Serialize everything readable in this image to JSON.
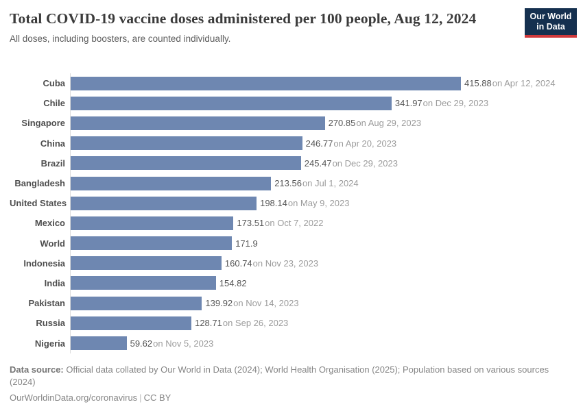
{
  "header": {
    "title": "Total COVID-19 vaccine doses administered per 100 people, Aug 12, 2024",
    "subtitle": "All doses, including boosters, are counted individually.",
    "logo": {
      "line1": "Our World",
      "line2": "in Data"
    }
  },
  "chart_data": {
    "type": "bar",
    "orientation": "horizontal",
    "title": "Total COVID-19 vaccine doses administered per 100 people, Aug 12, 2024",
    "xlabel": "",
    "ylabel": "",
    "xlim": [
      0,
      415.88
    ],
    "grid": false,
    "legend": "none",
    "bar_color": "#6e87b1",
    "axis_line_color": "#dcdcdc",
    "categories": [
      "Cuba",
      "Chile",
      "Singapore",
      "China",
      "Brazil",
      "Bangladesh",
      "United States",
      "Mexico",
      "World",
      "Indonesia",
      "India",
      "Pakistan",
      "Russia",
      "Nigeria"
    ],
    "values": [
      415.88,
      341.97,
      270.85,
      246.77,
      245.47,
      213.56,
      198.14,
      173.51,
      171.9,
      160.74,
      154.82,
      139.92,
      128.71,
      59.62
    ],
    "rows": [
      {
        "label": "Cuba",
        "value": 415.88,
        "value_label": "415.88",
        "date_label": "on Apr 12, 2024"
      },
      {
        "label": "Chile",
        "value": 341.97,
        "value_label": "341.97",
        "date_label": "on Dec 29, 2023"
      },
      {
        "label": "Singapore",
        "value": 270.85,
        "value_label": "270.85",
        "date_label": "on Aug 29, 2023"
      },
      {
        "label": "China",
        "value": 246.77,
        "value_label": "246.77",
        "date_label": "on Apr 20, 2023"
      },
      {
        "label": "Brazil",
        "value": 245.47,
        "value_label": "245.47",
        "date_label": "on Dec 29, 2023"
      },
      {
        "label": "Bangladesh",
        "value": 213.56,
        "value_label": "213.56",
        "date_label": "on Jul 1, 2024"
      },
      {
        "label": "United States",
        "value": 198.14,
        "value_label": "198.14",
        "date_label": "on May 9, 2023"
      },
      {
        "label": "Mexico",
        "value": 173.51,
        "value_label": "173.51",
        "date_label": "on Oct 7, 2022"
      },
      {
        "label": "World",
        "value": 171.9,
        "value_label": "171.9",
        "date_label": ""
      },
      {
        "label": "Indonesia",
        "value": 160.74,
        "value_label": "160.74",
        "date_label": "on Nov 23, 2023"
      },
      {
        "label": "India",
        "value": 154.82,
        "value_label": "154.82",
        "date_label": ""
      },
      {
        "label": "Pakistan",
        "value": 139.92,
        "value_label": "139.92",
        "date_label": "on Nov 14, 2023"
      },
      {
        "label": "Russia",
        "value": 128.71,
        "value_label": "128.71",
        "date_label": "on Sep 26, 2023"
      },
      {
        "label": "Nigeria",
        "value": 59.62,
        "value_label": "59.62",
        "date_label": "on Nov 5, 2023"
      }
    ]
  },
  "footer": {
    "source_prefix": "Data source:",
    "source_text": " Official data collated by Our World in Data (2024); World Health Organisation (2025); Population based on various sources (2024)",
    "link": "OurWorldinData.org/coronavirus",
    "separator": "|",
    "license": "CC BY"
  }
}
